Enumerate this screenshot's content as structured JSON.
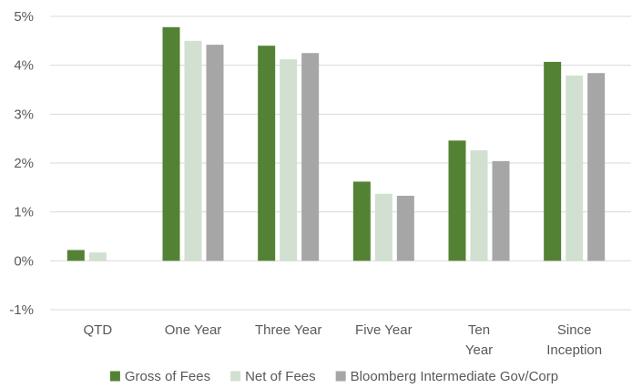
{
  "chart_data": {
    "type": "bar",
    "title": "",
    "xlabel": "",
    "ylabel": "",
    "categories": [
      [
        "QTD"
      ],
      [
        "One Year"
      ],
      [
        "Three Year"
      ],
      [
        "Five Year"
      ],
      [
        "Ten",
        "Year"
      ],
      [
        "Since",
        "Inception"
      ]
    ],
    "series": [
      {
        "name": "Gross of Fees",
        "color": "#548235",
        "values": [
          0.22,
          4.78,
          4.4,
          1.62,
          2.46,
          4.07
        ]
      },
      {
        "name": "Net of Fees",
        "color": "#d1e0d1",
        "values": [
          0.17,
          4.5,
          4.12,
          1.37,
          2.26,
          3.79
        ]
      },
      {
        "name": "Bloomberg Intermediate Gov/Corp",
        "color": "#a6a6a6",
        "values": [
          null,
          4.42,
          4.25,
          1.33,
          2.04,
          3.84
        ]
      }
    ],
    "ylim": [
      -1,
      5
    ],
    "yticks": [
      -1,
      0,
      1,
      2,
      3,
      4,
      5
    ],
    "ytick_labels": [
      "-1%",
      "0%",
      "1%",
      "2%",
      "3%",
      "4%",
      "5%"
    ],
    "grid": true,
    "legend_position": "bottom"
  }
}
